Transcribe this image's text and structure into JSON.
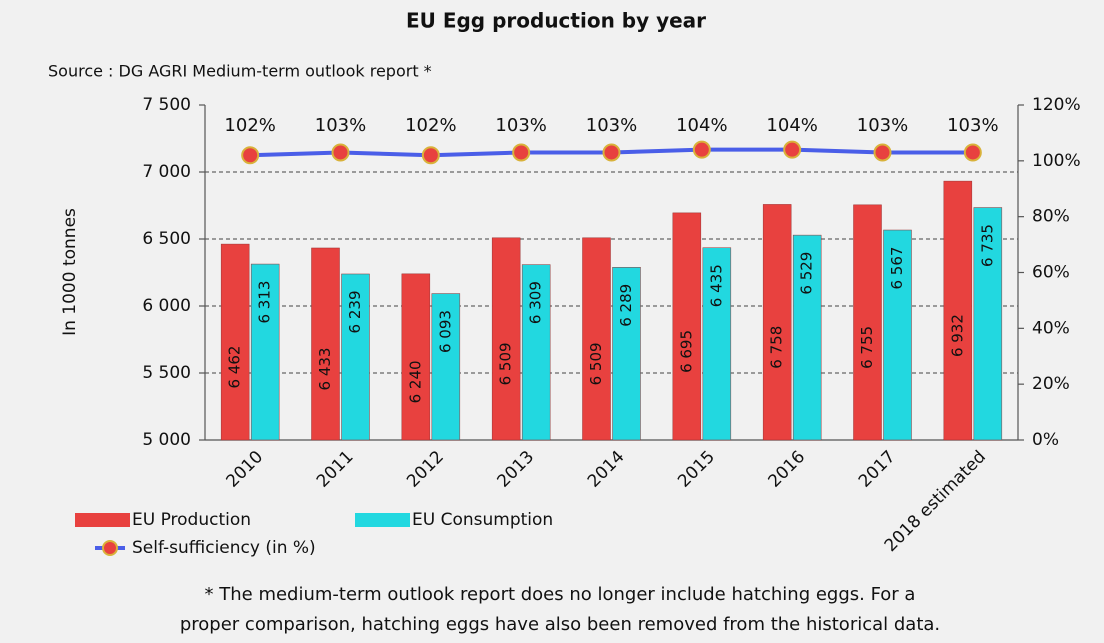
{
  "chart_data": {
    "type": "bar",
    "title": "EU Egg production by year",
    "subtitle": "Source : DG AGRI Medium-term outlook report *",
    "y_label": "In 1000 tonnes",
    "categories": [
      "2010",
      "2011",
      "2012",
      "2013",
      "2014",
      "2015",
      "2016",
      "2017",
      "2018 estimated"
    ],
    "series": [
      {
        "name": "EU Production",
        "color": "#e8413f",
        "values": [
          6462,
          6433,
          6240,
          6509,
          6509,
          6695,
          6758,
          6755,
          6932
        ],
        "value_labels": [
          "6 462",
          "6 433",
          "6 240",
          "6 509",
          "6 509",
          "6 695",
          "6 758",
          "6 755",
          "6 932"
        ]
      },
      {
        "name": "EU Consumption",
        "color": "#22d8e0",
        "values": [
          6313,
          6239,
          6093,
          6309,
          6289,
          6435,
          6529,
          6567,
          6735
        ],
        "value_labels": [
          "6 313",
          "6 239",
          "6 093",
          "6 309",
          "6 289",
          "6 435",
          "6 529",
          "6 567",
          "6 735"
        ]
      },
      {
        "name": "Self-sufficiency (in %)",
        "type": "line",
        "axis": "y2",
        "color": "#4a5ee8",
        "marker_color": "#e8413f",
        "values": [
          102,
          103,
          102,
          103,
          103,
          104,
          104,
          103,
          103
        ],
        "value_labels": [
          "102%",
          "103%",
          "102%",
          "103%",
          "103%",
          "104%",
          "104%",
          "103%",
          "103%"
        ]
      }
    ],
    "ylim": [
      5000,
      7500
    ],
    "yticks": [
      {
        "value": 5000,
        "label": "5 000"
      },
      {
        "value": 5500,
        "label": "5 500"
      },
      {
        "value": 6000,
        "label": "6 000"
      },
      {
        "value": 6500,
        "label": "6 500"
      },
      {
        "value": 7000,
        "label": "7 000"
      },
      {
        "value": 7500,
        "label": "7 500"
      }
    ],
    "y2lim": [
      0,
      120
    ],
    "y2ticks": [
      {
        "value": 0,
        "label": "0%"
      },
      {
        "value": 20,
        "label": "20%"
      },
      {
        "value": 40,
        "label": "40%"
      },
      {
        "value": 60,
        "label": "60%"
      },
      {
        "value": 80,
        "label": "80%"
      },
      {
        "value": 100,
        "label": "100%"
      },
      {
        "value": 120,
        "label": "120%"
      }
    ],
    "grid": true,
    "notes": [
      "* The medium-term outlook report does no longer include hatching eggs. For a",
      "proper comparison, hatching eggs have also been removed from the historical data."
    ]
  }
}
